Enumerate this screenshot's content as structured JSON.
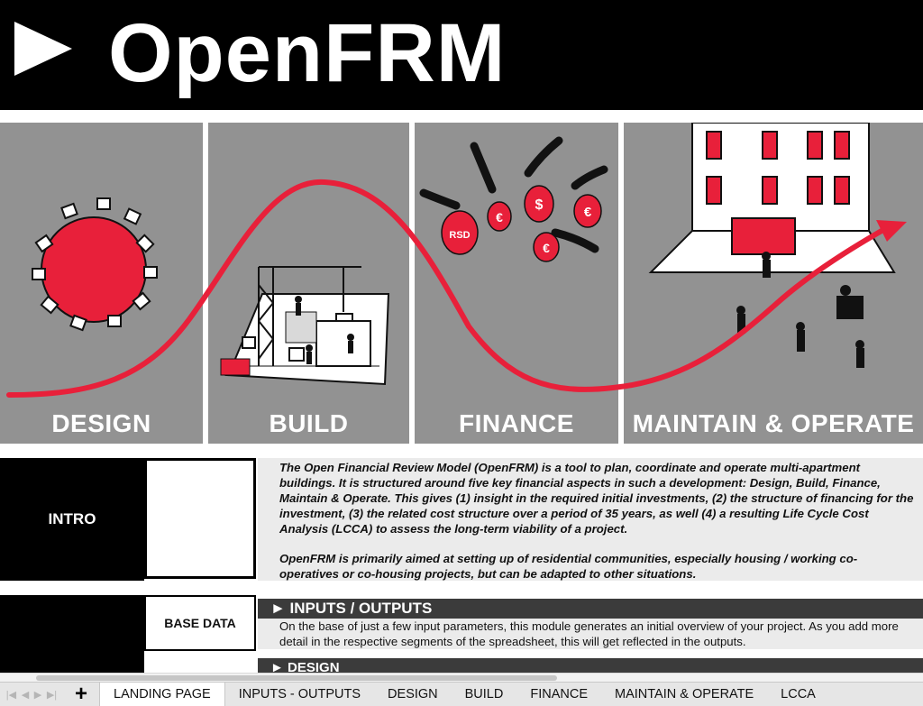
{
  "header": {
    "title": "OpenFRM"
  },
  "banner": {
    "panels": [
      {
        "label": "DESIGN"
      },
      {
        "label": "BUILD"
      },
      {
        "label": "FINANCE"
      },
      {
        "label": "MAINTAIN & OPERATE"
      }
    ],
    "money_bags": [
      "RSD",
      "€",
      "$",
      "€",
      "€"
    ]
  },
  "intro": {
    "label": "INTRO",
    "paragraph1": "The Open Financial Review Model (OpenFRM) is a tool to plan, coordinate and operate multi-apartment buildings. It is structured around five key financial aspects in such a development: Design, Build, Finance, Maintain & Operate. This gives (1) insight in the required initial investments, (2) the structure of financing for the investment, (3) the related cost structure over a period of 35 years, as well (4) a resulting Life Cycle Cost Analysis (LCCA) to assess the long-term viability of a project.",
    "paragraph2": "OpenFRM is primarily aimed at setting up of residential communities, especially housing / working co-operatives or co-housing projects, but can be adapted to other situations."
  },
  "base": {
    "label": "BASE DATA",
    "section_title": "► INPUTS / OUTPUTS",
    "description": "On the base of just a few input parameters, this module generates an initial overview of your project. As you add more detail in the respective segments of the spreadsheet, this will get reflected in the outputs.",
    "next_section_peek": "► DESIGN"
  },
  "sheet_tabs": [
    {
      "label": "LANDING PAGE",
      "active": true
    },
    {
      "label": "INPUTS - OUTPUTS",
      "active": false
    },
    {
      "label": "DESIGN",
      "active": false
    },
    {
      "label": "BUILD",
      "active": false
    },
    {
      "label": "FINANCE",
      "active": false
    },
    {
      "label": "MAINTAIN & OPERATE",
      "active": false
    },
    {
      "label": "LCCA",
      "active": false
    }
  ],
  "add_sheet_label": "+",
  "colors": {
    "accent_red": "#e8203a",
    "panel_gray": "#929292",
    "header_black": "#000000"
  }
}
